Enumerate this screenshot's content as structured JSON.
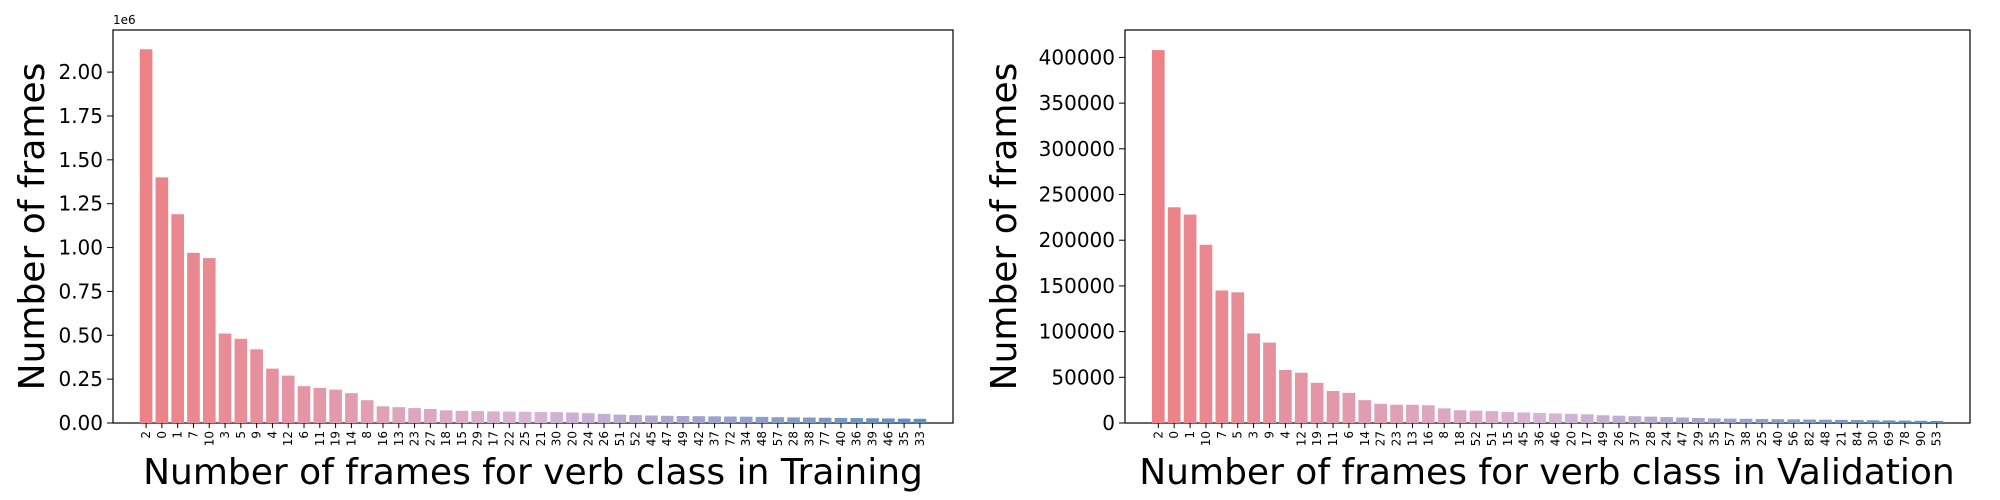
{
  "colors": {
    "start": "#ec8286",
    "mid": "#d8b4d6",
    "end": "#5b8fbc"
  },
  "chart_data": [
    {
      "type": "bar",
      "xlabel": "Number of frames for verb class in Training",
      "ylabel": "Number of frames",
      "scale_label": "1e6",
      "ylim": [
        0,
        2.24
      ],
      "yticks": [
        "0.00",
        "0.25",
        "0.50",
        "0.75",
        "1.00",
        "1.25",
        "1.50",
        "1.75",
        "2.00"
      ],
      "categories": [
        "2",
        "0",
        "1",
        "7",
        "10",
        "3",
        "5",
        "9",
        "4",
        "12",
        "6",
        "11",
        "19",
        "14",
        "8",
        "16",
        "13",
        "23",
        "27",
        "18",
        "15",
        "29",
        "17",
        "22",
        "25",
        "21",
        "30",
        "20",
        "24",
        "26",
        "51",
        "52",
        "45",
        "47",
        "49",
        "42",
        "37",
        "72",
        "34",
        "48",
        "57",
        "28",
        "38",
        "77",
        "40",
        "36",
        "39",
        "46",
        "35",
        "33"
      ],
      "values": [
        2.13,
        1.4,
        1.19,
        0.97,
        0.94,
        0.51,
        0.48,
        0.42,
        0.31,
        0.27,
        0.21,
        0.2,
        0.19,
        0.17,
        0.13,
        0.095,
        0.09,
        0.085,
        0.08,
        0.072,
        0.07,
        0.068,
        0.066,
        0.065,
        0.064,
        0.063,
        0.062,
        0.06,
        0.056,
        0.052,
        0.048,
        0.045,
        0.043,
        0.041,
        0.04,
        0.039,
        0.038,
        0.037,
        0.036,
        0.035,
        0.033,
        0.032,
        0.031,
        0.03,
        0.029,
        0.028,
        0.027,
        0.026,
        0.025,
        0.024
      ]
    },
    {
      "type": "bar",
      "xlabel": "Number of frames for verb class in Validation",
      "ylabel": "Number of frames",
      "scale_label": "",
      "ylim": [
        0,
        430000
      ],
      "yticks": [
        "0",
        "50000",
        "100000",
        "150000",
        "200000",
        "250000",
        "300000",
        "350000",
        "400000"
      ],
      "categories": [
        "2",
        "0",
        "1",
        "10",
        "7",
        "5",
        "3",
        "9",
        "4",
        "12",
        "19",
        "11",
        "6",
        "14",
        "27",
        "23",
        "13",
        "16",
        "8",
        "18",
        "52",
        "51",
        "15",
        "45",
        "36",
        "46",
        "20",
        "17",
        "49",
        "26",
        "37",
        "28",
        "24",
        "47",
        "29",
        "35",
        "57",
        "38",
        "25",
        "40",
        "56",
        "82",
        "48",
        "21",
        "84",
        "30",
        "69",
        "78",
        "90",
        "53"
      ],
      "values": [
        408000,
        236000,
        228000,
        195000,
        145000,
        143000,
        98000,
        88000,
        58000,
        55000,
        44000,
        35000,
        33000,
        25000,
        21000,
        20000,
        20000,
        19500,
        16000,
        14000,
        13500,
        13000,
        12000,
        11500,
        11000,
        10500,
        10000,
        9500,
        8500,
        8000,
        7500,
        7000,
        6500,
        6000,
        5500,
        5000,
        4800,
        4600,
        4400,
        4200,
        4000,
        3800,
        3600,
        3400,
        3200,
        3000,
        2800,
        2600,
        2400,
        2200
      ]
    }
  ]
}
